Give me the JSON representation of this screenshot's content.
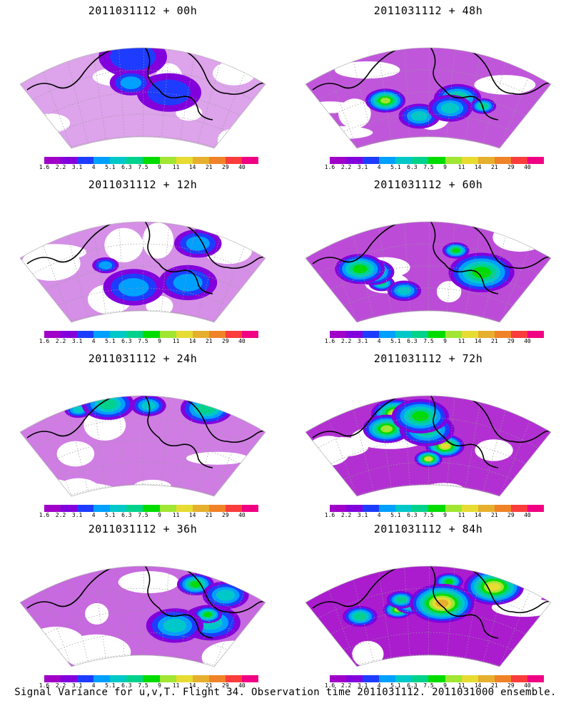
{
  "panels": [
    {
      "title": "2011031112 + 00h",
      "intensity": 0.15
    },
    {
      "title": "2011031112 + 48h",
      "intensity": 0.55
    },
    {
      "title": "2011031112 + 12h",
      "intensity": 0.25
    },
    {
      "title": "2011031112 + 60h",
      "intensity": 0.6
    },
    {
      "title": "2011031112 + 24h",
      "intensity": 0.35
    },
    {
      "title": "2011031112 + 72h",
      "intensity": 0.75
    },
    {
      "title": "2011031112 + 36h",
      "intensity": 0.45
    },
    {
      "title": "2011031112 + 84h",
      "intensity": 0.85
    }
  ],
  "colorbar": {
    "labels": [
      "1.6",
      "2.2",
      "3.1",
      "4",
      "5.1",
      "6.3",
      "7.5",
      "9",
      "11",
      "14",
      "21",
      "29",
      "40"
    ],
    "colors": [
      "#a000c8",
      "#8200dc",
      "#1e3cff",
      "#00a0ff",
      "#00c8c8",
      "#00d28c",
      "#00dc00",
      "#a0e632",
      "#e6dc32",
      "#e6af2d",
      "#f08228",
      "#fa3c3c",
      "#f00082"
    ]
  },
  "footer": "Signal Variance for u,v,T. Flight 34. Observation time 2011031112. 2011031000 ensemble."
}
